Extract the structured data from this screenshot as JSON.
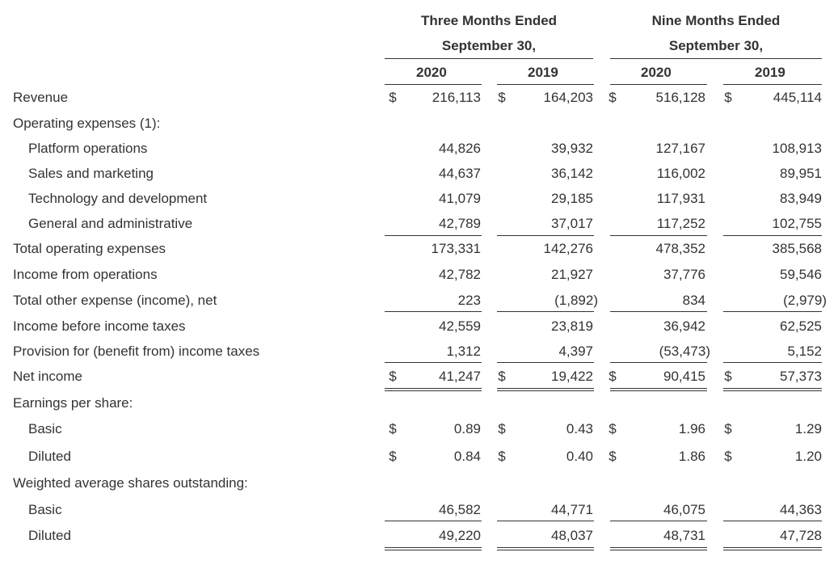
{
  "headers": {
    "three_months_line1": "Three Months Ended",
    "three_months_line2": "September 30,",
    "nine_months_line1": "Nine Months Ended",
    "nine_months_line2": "September 30,",
    "years": [
      "2020",
      "2019",
      "2020",
      "2019"
    ]
  },
  "currency_symbol": "$",
  "rows": [
    {
      "label": "Revenue",
      "values": [
        "216,113",
        "164,203",
        "516,128",
        "445,114"
      ]
    },
    {
      "label": "Operating expenses (1):"
    },
    {
      "label": "Platform operations",
      "values": [
        "44,826",
        "39,932",
        "127,167",
        "108,913"
      ]
    },
    {
      "label": "Sales and marketing",
      "values": [
        "44,637",
        "36,142",
        "116,002",
        "89,951"
      ]
    },
    {
      "label": "Technology and development",
      "values": [
        "41,079",
        "29,185",
        "117,931",
        "83,949"
      ]
    },
    {
      "label": "General and administrative",
      "values": [
        "42,789",
        "37,017",
        "117,252",
        "102,755"
      ]
    },
    {
      "label": "Total operating expenses",
      "values": [
        "173,331",
        "142,276",
        "478,352",
        "385,568"
      ]
    },
    {
      "label": "Income from operations",
      "values": [
        "42,782",
        "21,927",
        "37,776",
        "59,546"
      ]
    },
    {
      "label": "Total other expense (income), net",
      "values": [
        "223",
        "(1,892)",
        "834",
        "(2,979)"
      ]
    },
    {
      "label": "Income before income taxes",
      "values": [
        "42,559",
        "23,819",
        "36,942",
        "62,525"
      ]
    },
    {
      "label": "Provision for (benefit from) income taxes",
      "values": [
        "1,312",
        "4,397",
        "(53,473)",
        "5,152"
      ]
    },
    {
      "label": "Net income",
      "values": [
        "41,247",
        "19,422",
        "90,415",
        "57,373"
      ]
    },
    {
      "label": "Earnings per share:"
    },
    {
      "label": "Basic",
      "values": [
        "0.89",
        "0.43",
        "1.96",
        "1.29"
      ]
    },
    {
      "label": "Diluted",
      "values": [
        "0.84",
        "0.40",
        "1.86",
        "1.20"
      ]
    },
    {
      "label": "Weighted average shares outstanding:"
    },
    {
      "label": "Basic",
      "values": [
        "46,582",
        "44,771",
        "46,075",
        "44,363"
      ]
    },
    {
      "label": "Diluted",
      "values": [
        "49,220",
        "48,037",
        "48,731",
        "47,728"
      ]
    }
  ]
}
